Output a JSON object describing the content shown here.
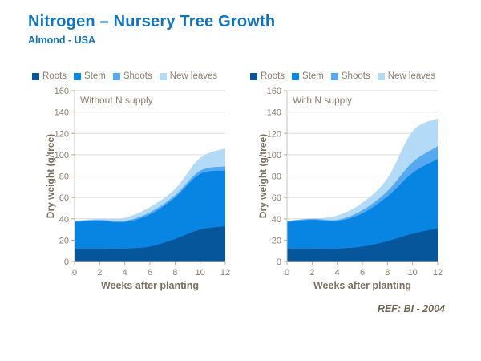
{
  "header": {
    "title": "Nitrogen – Nursery Tree Growth",
    "subtitle": "Almond - USA"
  },
  "footer": {
    "ref_label": "REF:  BI - 2004"
  },
  "legend": {
    "items": [
      {
        "label": "Roots",
        "color": "#06569b"
      },
      {
        "label": "Stem",
        "color": "#0884e3"
      },
      {
        "label": "Shoots",
        "color": "#57a9ef"
      },
      {
        "label": "New leaves",
        "color": "#b3daf6"
      }
    ]
  },
  "axes": {
    "y_label": "Dry weight (g/tree)",
    "x_label": "Weeks after planting",
    "y_ticks": [
      0,
      20,
      40,
      60,
      80,
      100,
      120,
      140,
      160
    ],
    "x_ticks": [
      0,
      2,
      4,
      6,
      8,
      10,
      12
    ],
    "y_max": 160,
    "x_max": 12
  },
  "colors": {
    "gridline": "#d9d9d9",
    "axis_line": "#c9c2b8",
    "tick_mark": "#b5aa9b",
    "tick_text": "#8a7d6d"
  },
  "chart_data": [
    {
      "type": "area",
      "stacked": true,
      "title": "Without N supply",
      "x": [
        0,
        2,
        4,
        6,
        8,
        10,
        12
      ],
      "series": [
        {
          "name": "Roots",
          "color": "#06569b",
          "values": [
            12,
            12,
            12,
            14,
            21,
            30,
            33
          ]
        },
        {
          "name": "Stem",
          "color": "#0884e3",
          "values": [
            25,
            26,
            25,
            30,
            39,
            52,
            52
          ]
        },
        {
          "name": "Shoots",
          "color": "#57a9ef",
          "values": [
            1,
            1,
            1,
            2,
            2,
            3,
            4
          ]
        },
        {
          "name": "New leaves",
          "color": "#b3daf6",
          "values": [
            0,
            1,
            3,
            5,
            6,
            12,
            17
          ]
        }
      ],
      "stack_totals": [
        38,
        40,
        41,
        51,
        68,
        97,
        106
      ],
      "xlabel": "Weeks after planting",
      "ylabel": "Dry weight (g/tree)",
      "xlim": [
        0,
        12
      ],
      "ylim": [
        0,
        160
      ],
      "grid": true,
      "legend_position": "top"
    },
    {
      "type": "area",
      "stacked": true,
      "title": "With N supply",
      "x": [
        0,
        2,
        4,
        6,
        8,
        10,
        12
      ],
      "series": [
        {
          "name": "Roots",
          "color": "#06569b",
          "values": [
            12,
            12,
            12,
            14,
            19,
            26,
            31
          ]
        },
        {
          "name": "Stem",
          "color": "#0884e3",
          "values": [
            25,
            27,
            26,
            31,
            42,
            57,
            65
          ]
        },
        {
          "name": "Shoots",
          "color": "#57a9ef",
          "values": [
            1,
            1,
            1,
            3,
            5,
            10,
            12
          ]
        },
        {
          "name": "New leaves",
          "color": "#b3daf6",
          "values": [
            0,
            0,
            4,
            7,
            12,
            29,
            26
          ]
        }
      ],
      "stack_totals": [
        38,
        40,
        43,
        55,
        78,
        122,
        134
      ],
      "xlabel": "Weeks after planting",
      "ylabel": "Dry weight (g/tree)",
      "xlim": [
        0,
        12
      ],
      "ylim": [
        0,
        160
      ],
      "grid": true,
      "legend_position": "top"
    }
  ]
}
